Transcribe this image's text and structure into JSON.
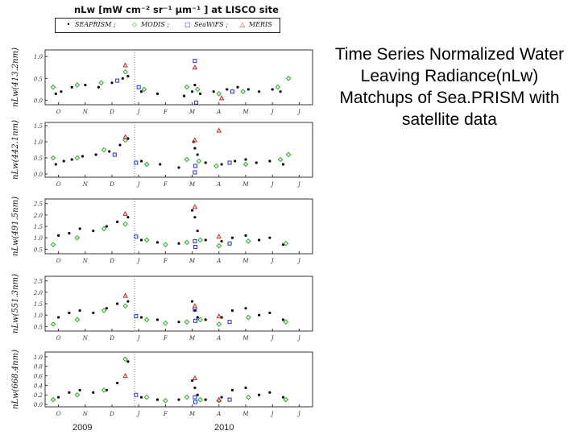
{
  "figure": {
    "title": "nLw [mW cm⁻² sr⁻¹ µm⁻¹ ] at LISCO site",
    "legend": [
      {
        "name": "SEAPRISM ;",
        "symbol": "•",
        "color": "#000000"
      },
      {
        "name": "MODIS ;",
        "symbol": "◇",
        "color": "#22aa22"
      },
      {
        "name": "SeaWiFS ;",
        "symbol": "□",
        "color": "#2233cc"
      },
      {
        "name": "MERIS",
        "symbol": "△",
        "color": "#cc2222"
      }
    ]
  },
  "caption": "Time Series Normalized Water Leaving Radiance(nLw) Matchups of Sea.PRISM with satellite data",
  "colors": {
    "seaprism": "#000000",
    "modis": "#22aa22",
    "seawifs": "#2233cc",
    "meris": "#cc2222"
  },
  "chart_data": [
    {
      "type": "scatter",
      "ylabel": "nLw(413.2nm)",
      "yticks": [
        "1.0",
        "0.5",
        "0.0"
      ],
      "ylim": [
        -0.1,
        1.15
      ],
      "month_labels": [
        "O",
        "N",
        "D",
        "J",
        "F",
        "M",
        "A",
        "M",
        "J",
        "J"
      ],
      "series": [
        {
          "name": "SEAPRISM",
          "points": [
            [
              0.4,
              0.15
            ],
            [
              0.6,
              0.2
            ],
            [
              1.0,
              0.3
            ],
            [
              1.5,
              0.35
            ],
            [
              2.0,
              0.3
            ],
            [
              2.5,
              0.4
            ],
            [
              2.9,
              0.5
            ],
            [
              3.1,
              0.55
            ],
            [
              3.6,
              0.2
            ],
            [
              4.2,
              0.15
            ],
            [
              5.2,
              0.1
            ],
            [
              5.5,
              0.2
            ],
            [
              5.6,
              0.35
            ],
            [
              5.8,
              0.15
            ],
            [
              6.3,
              0.2
            ],
            [
              6.8,
              0.25
            ],
            [
              7.2,
              0.3
            ],
            [
              7.6,
              0.25
            ],
            [
              8.0,
              0.2
            ],
            [
              8.5,
              0.25
            ],
            [
              8.8,
              0.2
            ]
          ]
        },
        {
          "name": "MODIS",
          "points": [
            [
              0.3,
              0.3
            ],
            [
              1.2,
              0.35
            ],
            [
              2.1,
              0.4
            ],
            [
              3.0,
              0.65
            ],
            [
              3.7,
              0.25
            ],
            [
              5.3,
              0.3
            ],
            [
              5.7,
              0.25
            ],
            [
              6.5,
              0.15
            ],
            [
              7.4,
              0.2
            ],
            [
              8.7,
              0.3
            ],
            [
              9.1,
              0.5
            ]
          ]
        },
        {
          "name": "SeaWiFS",
          "points": [
            [
              2.7,
              0.45
            ],
            [
              3.5,
              0.3
            ],
            [
              5.6,
              0.9
            ],
            [
              5.65,
              -0.05
            ],
            [
              7.0,
              0.2
            ]
          ]
        },
        {
          "name": "MERIS",
          "points": [
            [
              3.0,
              0.8
            ],
            [
              5.6,
              0.75
            ],
            [
              6.6,
              0.05
            ]
          ]
        }
      ]
    },
    {
      "type": "scatter",
      "ylabel": "nLw(442.1nm)",
      "yticks": [
        "1.5",
        "1.0",
        "0.5",
        "0.0"
      ],
      "ylim": [
        -0.1,
        1.6
      ],
      "month_labels": [
        "O",
        "N",
        "D",
        "J",
        "F",
        "M",
        "A",
        "M",
        "J",
        "J"
      ],
      "series": [
        {
          "name": "SEAPRISM",
          "points": [
            [
              0.4,
              0.3
            ],
            [
              0.7,
              0.4
            ],
            [
              1.0,
              0.45
            ],
            [
              1.4,
              0.55
            ],
            [
              1.9,
              0.6
            ],
            [
              2.4,
              0.7
            ],
            [
              2.8,
              0.9
            ],
            [
              3.1,
              1.1
            ],
            [
              3.6,
              0.4
            ],
            [
              4.3,
              0.3
            ],
            [
              5.0,
              0.2
            ],
            [
              5.55,
              1.0
            ],
            [
              5.6,
              0.8
            ],
            [
              5.7,
              0.6
            ],
            [
              6.0,
              0.35
            ],
            [
              6.6,
              0.3
            ],
            [
              7.1,
              0.4
            ],
            [
              7.5,
              0.45
            ],
            [
              7.9,
              0.35
            ],
            [
              8.4,
              0.4
            ],
            [
              8.9,
              0.3
            ]
          ]
        },
        {
          "name": "MODIS",
          "points": [
            [
              0.3,
              0.5
            ],
            [
              1.2,
              0.5
            ],
            [
              2.2,
              0.75
            ],
            [
              3.0,
              1.05
            ],
            [
              3.8,
              0.3
            ],
            [
              5.3,
              0.45
            ],
            [
              5.75,
              0.4
            ],
            [
              6.4,
              0.25
            ],
            [
              7.5,
              0.3
            ],
            [
              8.8,
              0.45
            ],
            [
              9.1,
              0.6
            ]
          ]
        },
        {
          "name": "SeaWiFS",
          "points": [
            [
              2.6,
              0.6
            ],
            [
              3.4,
              0.35
            ],
            [
              5.6,
              0.05
            ],
            [
              5.62,
              0.25
            ],
            [
              6.9,
              0.35
            ]
          ]
        },
        {
          "name": "MERIS",
          "points": [
            [
              3.0,
              1.15
            ],
            [
              5.6,
              1.05
            ],
            [
              6.5,
              1.35
            ]
          ]
        }
      ]
    },
    {
      "type": "scatter",
      "ylabel": "nLw(491.5nm)",
      "yticks": [
        "2.5",
        "2.0",
        "1.5",
        "1.0",
        "0.5"
      ],
      "ylim": [
        0.3,
        2.7
      ],
      "month_labels": [
        "O",
        "N",
        "D",
        "J",
        "F",
        "M",
        "A",
        "M",
        "J",
        "J"
      ],
      "series": [
        {
          "name": "SEAPRISM",
          "points": [
            [
              0.5,
              1.1
            ],
            [
              0.9,
              1.2
            ],
            [
              1.3,
              1.4
            ],
            [
              1.8,
              1.3
            ],
            [
              2.3,
              1.5
            ],
            [
              2.7,
              1.7
            ],
            [
              3.1,
              1.9
            ],
            [
              3.6,
              0.9
            ],
            [
              4.2,
              0.8
            ],
            [
              5.0,
              0.75
            ],
            [
              5.5,
              2.2
            ],
            [
              5.6,
              1.9
            ],
            [
              5.7,
              1.3
            ],
            [
              6.0,
              0.9
            ],
            [
              6.6,
              0.85
            ],
            [
              7.0,
              1.0
            ],
            [
              7.5,
              1.1
            ],
            [
              8.0,
              0.9
            ],
            [
              8.4,
              1.0
            ],
            [
              8.9,
              0.7
            ]
          ]
        },
        {
          "name": "MODIS",
          "points": [
            [
              0.3,
              0.7
            ],
            [
              1.2,
              1.0
            ],
            [
              2.2,
              1.4
            ],
            [
              3.0,
              1.6
            ],
            [
              3.8,
              0.9
            ],
            [
              4.5,
              0.7
            ],
            [
              5.3,
              0.8
            ],
            [
              5.8,
              0.9
            ],
            [
              6.5,
              0.65
            ],
            [
              7.6,
              0.85
            ],
            [
              9.0,
              0.75
            ]
          ]
        },
        {
          "name": "SeaWiFS",
          "points": [
            [
              3.4,
              1.05
            ],
            [
              5.6,
              0.85
            ],
            [
              5.62,
              0.6
            ],
            [
              6.9,
              0.75
            ]
          ]
        },
        {
          "name": "MERIS",
          "points": [
            [
              3.0,
              2.05
            ],
            [
              5.6,
              2.35
            ],
            [
              6.5,
              1.05
            ]
          ]
        }
      ]
    },
    {
      "type": "scatter",
      "ylabel": "nLw(551.3nm)",
      "yticks": [
        "2.5",
        "2.0",
        "1.5",
        "1.0",
        "0.5"
      ],
      "ylim": [
        0.3,
        2.7
      ],
      "month_labels": [
        "O",
        "N",
        "D",
        "J",
        "F",
        "M",
        "A",
        "M",
        "J",
        "J"
      ],
      "series": [
        {
          "name": "SEAPRISM",
          "points": [
            [
              0.5,
              0.9
            ],
            [
              0.9,
              1.1
            ],
            [
              1.3,
              1.2
            ],
            [
              1.8,
              1.1
            ],
            [
              2.3,
              1.3
            ],
            [
              2.7,
              1.5
            ],
            [
              3.1,
              1.6
            ],
            [
              3.6,
              0.9
            ],
            [
              4.2,
              0.8
            ],
            [
              5.0,
              0.7
            ],
            [
              5.5,
              1.6
            ],
            [
              5.6,
              1.2
            ],
            [
              5.7,
              0.9
            ],
            [
              6.0,
              0.8
            ],
            [
              6.6,
              0.9
            ],
            [
              7.0,
              1.2
            ],
            [
              7.5,
              1.3
            ],
            [
              8.0,
              1.0
            ],
            [
              8.4,
              1.1
            ],
            [
              8.9,
              0.8
            ]
          ]
        },
        {
          "name": "MODIS",
          "points": [
            [
              0.3,
              0.6
            ],
            [
              1.2,
              0.8
            ],
            [
              2.2,
              1.2
            ],
            [
              3.0,
              1.4
            ],
            [
              3.8,
              0.8
            ],
            [
              4.5,
              0.65
            ],
            [
              5.3,
              0.7
            ],
            [
              5.8,
              0.8
            ],
            [
              6.5,
              0.6
            ],
            [
              7.6,
              0.9
            ],
            [
              9.0,
              0.7
            ]
          ]
        },
        {
          "name": "SeaWiFS",
          "points": [
            [
              3.4,
              0.95
            ],
            [
              5.6,
              1.25
            ],
            [
              5.62,
              0.75
            ],
            [
              6.9,
              0.7
            ]
          ]
        },
        {
          "name": "MERIS",
          "points": [
            [
              3.0,
              1.85
            ],
            [
              5.6,
              1.4
            ],
            [
              6.5,
              0.95
            ]
          ]
        }
      ]
    },
    {
      "type": "scatter",
      "ylabel": "nLw(668.4nm)",
      "yticks": [
        "1.0",
        "0.8",
        "0.6",
        "0.4",
        "0.2",
        "0.0"
      ],
      "ylim": [
        -0.05,
        1.1
      ],
      "month_labels": [
        "O",
        "N",
        "D",
        "J",
        "F",
        "M",
        "A",
        "M",
        "J",
        "J"
      ],
      "series": [
        {
          "name": "SEAPRISM",
          "points": [
            [
              0.5,
              0.15
            ],
            [
              0.9,
              0.25
            ],
            [
              1.3,
              0.3
            ],
            [
              1.8,
              0.25
            ],
            [
              2.3,
              0.3
            ],
            [
              2.7,
              0.45
            ],
            [
              3.1,
              0.9
            ],
            [
              3.6,
              0.15
            ],
            [
              4.2,
              0.1
            ],
            [
              5.0,
              0.1
            ],
            [
              5.5,
              0.5
            ],
            [
              5.6,
              0.35
            ],
            [
              5.7,
              0.2
            ],
            [
              6.0,
              0.1
            ],
            [
              6.6,
              0.15
            ],
            [
              7.0,
              0.3
            ],
            [
              7.5,
              0.35
            ],
            [
              8.0,
              0.2
            ],
            [
              8.4,
              0.25
            ],
            [
              8.9,
              0.15
            ]
          ]
        },
        {
          "name": "MODIS",
          "points": [
            [
              0.3,
              0.1
            ],
            [
              1.2,
              0.2
            ],
            [
              2.2,
              0.3
            ],
            [
              3.0,
              0.95
            ],
            [
              3.8,
              0.15
            ],
            [
              4.5,
              0.08
            ],
            [
              5.3,
              0.15
            ],
            [
              5.8,
              0.1
            ],
            [
              6.5,
              0.08
            ],
            [
              7.6,
              0.15
            ],
            [
              9.0,
              0.1
            ]
          ]
        },
        {
          "name": "SeaWiFS",
          "points": [
            [
              3.4,
              0.2
            ],
            [
              5.6,
              0.15
            ],
            [
              5.62,
              0.05
            ],
            [
              6.9,
              0.1
            ]
          ]
        },
        {
          "name": "MERIS",
          "points": [
            [
              3.0,
              0.6
            ],
            [
              5.6,
              0.55
            ],
            [
              6.5,
              0.1
            ]
          ]
        }
      ]
    }
  ],
  "years": [
    "2009",
    "2010"
  ]
}
